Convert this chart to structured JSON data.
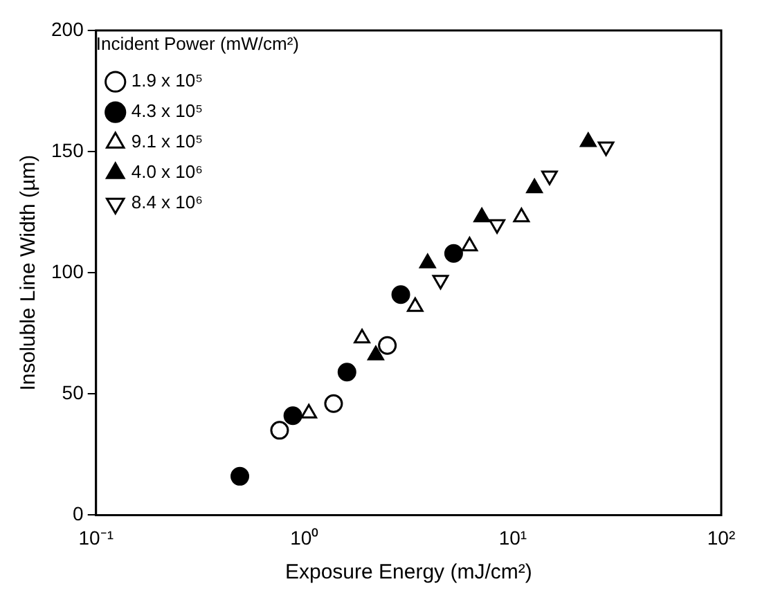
{
  "chart_data": {
    "type": "scatter",
    "xlabel": "Exposure Energy (mJ/cm²)",
    "ylabel": "Insoluble Line Width (µm)",
    "legend_title": "Incident Power (mW/cm²)",
    "log": "x",
    "xlim": [
      0.1,
      100
    ],
    "xticks": [
      {
        "value": 0.1,
        "label": "10⁻¹"
      },
      {
        "value": 1,
        "label": "10⁰"
      },
      {
        "value": 10,
        "label": "10¹"
      },
      {
        "value": 100,
        "label": "10²"
      }
    ],
    "ylim": [
      0,
      200
    ],
    "yticks": [
      0,
      50,
      100,
      150,
      200
    ],
    "grid": false,
    "legend": "top left",
    "series": [
      {
        "name": "1.9 x 10⁵",
        "color": "#ffffff",
        "marker": "circle",
        "x": [
          0.76,
          1.38,
          2.5
        ],
        "values": [
          35,
          46,
          70
        ]
      },
      {
        "name": "4.3 x 10⁵",
        "color": "#000000",
        "marker": "circle",
        "x": [
          0.49,
          0.88,
          1.6,
          2.9,
          5.2
        ],
        "values": [
          16,
          41,
          59,
          91,
          108
        ]
      },
      {
        "name": "9.1 x 10⁵",
        "color": "#ffffff",
        "marker": "triangle",
        "x": [
          1.05,
          1.89,
          3.4,
          6.2,
          11
        ],
        "values": [
          42,
          73,
          86,
          111,
          123
        ]
      },
      {
        "name": "4.0 x 10⁶",
        "color": "#000000",
        "marker": "triangle",
        "x": [
          2.2,
          3.9,
          7.1,
          12.7,
          23
        ],
        "values": [
          66,
          104,
          123,
          135,
          154
        ]
      },
      {
        "name": "8.4 x 10⁶",
        "color": "#ffffff",
        "marker": "triangle-down",
        "x": [
          4.5,
          8.4,
          15,
          28
        ],
        "values": [
          97,
          120,
          140,
          152
        ]
      }
    ]
  }
}
